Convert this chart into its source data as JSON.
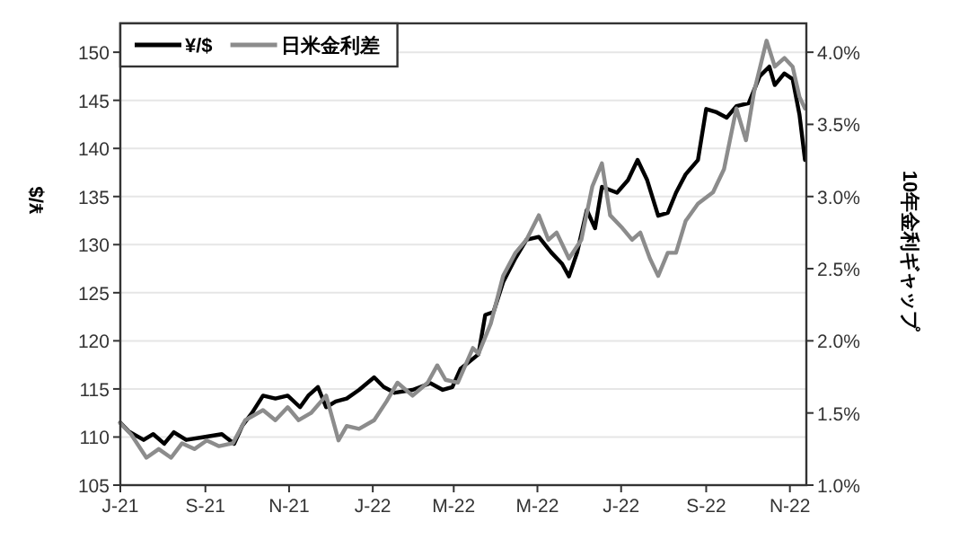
{
  "chart_data": {
    "type": "line",
    "ylabel": "¥/$",
    "y2label": "10年金利ギャップ",
    "grid": "y",
    "legend": "top left",
    "xlim": [
      "2021-07-01",
      "2022-11-13"
    ],
    "xticks": [
      {
        "value": "2021-07-01",
        "label": "J-21"
      },
      {
        "value": "2021-09-01",
        "label": "S-21"
      },
      {
        "value": "2021-11-01",
        "label": "N-21"
      },
      {
        "value": "2022-01-01",
        "label": "J-22"
      },
      {
        "value": "2022-03-01",
        "label": "M-22"
      },
      {
        "value": "2022-05-01",
        "label": "M-22"
      },
      {
        "value": "2022-07-01",
        "label": "J-22"
      },
      {
        "value": "2022-09-01",
        "label": "S-22"
      },
      {
        "value": "2022-11-01",
        "label": "N-22"
      }
    ],
    "ylim": [
      105,
      153
    ],
    "yticks": [
      105,
      110,
      115,
      120,
      125,
      130,
      135,
      140,
      145,
      150
    ],
    "y2lim": [
      1.0,
      4.2
    ],
    "y2ticks": [
      {
        "value": 1.0,
        "label": "1.0%"
      },
      {
        "value": 1.5,
        "label": "1.5%"
      },
      {
        "value": 2.0,
        "label": "2.0%"
      },
      {
        "value": 2.5,
        "label": "2.5%"
      },
      {
        "value": 3.0,
        "label": "3.0%"
      },
      {
        "value": 3.5,
        "label": "3.5%"
      },
      {
        "value": 4.0,
        "label": "4.0%"
      }
    ],
    "series": [
      {
        "name": "¥/$",
        "color": "#000000",
        "x": [
          "2021-07-01",
          "2021-07-07",
          "2021-07-18",
          "2021-07-25",
          "2021-08-02",
          "2021-08-09",
          "2021-08-18",
          "2021-08-31",
          "2021-09-13",
          "2021-09-22",
          "2021-09-28",
          "2021-10-05",
          "2021-10-13",
          "2021-10-22",
          "2021-10-31",
          "2021-11-09",
          "2021-11-15",
          "2021-11-22",
          "2021-11-28",
          "2021-12-05",
          "2021-12-13",
          "2021-12-22",
          "2022-01-02",
          "2022-01-09",
          "2022-01-17",
          "2022-01-30",
          "2022-02-12",
          "2022-02-21",
          "2022-02-28",
          "2022-03-06",
          "2022-03-19",
          "2022-03-24",
          "2022-03-30",
          "2022-04-06",
          "2022-04-15",
          "2022-04-23",
          "2022-05-02",
          "2022-05-11",
          "2022-05-19",
          "2022-05-24",
          "2022-05-30",
          "2022-06-06",
          "2022-06-12",
          "2022-06-17",
          "2022-06-28",
          "2022-07-06",
          "2022-07-13",
          "2022-07-20",
          "2022-07-28",
          "2022-08-04",
          "2022-08-10",
          "2022-08-17",
          "2022-08-26",
          "2022-09-01",
          "2022-09-08",
          "2022-09-16",
          "2022-09-23",
          "2022-10-02",
          "2022-10-10",
          "2022-10-17",
          "2022-10-21",
          "2022-10-28",
          "2022-11-03",
          "2022-11-08",
          "2022-11-12"
        ],
        "values": [
          111.5,
          110.6,
          109.7,
          110.3,
          109.3,
          110.5,
          109.7,
          110.0,
          110.3,
          109.3,
          111.2,
          112.5,
          114.3,
          114.0,
          114.3,
          113.1,
          114.3,
          115.2,
          113.1,
          113.7,
          114.0,
          114.9,
          116.2,
          115.2,
          114.6,
          114.9,
          115.6,
          114.9,
          115.2,
          117.1,
          118.6,
          122.7,
          123.0,
          126.1,
          128.6,
          130.5,
          130.8,
          129.2,
          128.0,
          126.7,
          129.2,
          133.6,
          131.7,
          136.0,
          135.4,
          136.7,
          138.8,
          136.7,
          133.0,
          133.3,
          135.4,
          137.3,
          138.8,
          144.1,
          143.8,
          143.2,
          144.4,
          144.7,
          147.5,
          148.5,
          146.6,
          147.8,
          147.2,
          143.5,
          138.8
        ]
      },
      {
        "name": "日米金利差",
        "color": "#8c8c8c",
        "axis": "y2",
        "x": [
          "2021-07-01",
          "2021-07-09",
          "2021-07-20",
          "2021-07-29",
          "2021-08-07",
          "2021-08-15",
          "2021-08-24",
          "2021-09-02",
          "2021-09-11",
          "2021-09-21",
          "2021-09-30",
          "2021-10-13",
          "2021-10-22",
          "2021-10-31",
          "2021-11-08",
          "2021-11-17",
          "2021-11-28",
          "2021-12-07",
          "2021-12-13",
          "2021-12-22",
          "2022-01-02",
          "2022-01-11",
          "2022-01-19",
          "2022-01-30",
          "2022-02-10",
          "2022-02-17",
          "2022-02-23",
          "2022-03-04",
          "2022-03-15",
          "2022-03-19",
          "2022-03-28",
          "2022-04-06",
          "2022-04-15",
          "2022-04-23",
          "2022-05-02",
          "2022-05-09",
          "2022-05-15",
          "2022-05-24",
          "2022-06-02",
          "2022-06-10",
          "2022-06-17",
          "2022-06-23",
          "2022-07-02",
          "2022-07-09",
          "2022-07-15",
          "2022-07-22",
          "2022-07-28",
          "2022-08-04",
          "2022-08-10",
          "2022-08-17",
          "2022-08-26",
          "2022-09-06",
          "2022-09-14",
          "2022-09-23",
          "2022-09-30",
          "2022-10-06",
          "2022-10-15",
          "2022-10-21",
          "2022-10-28",
          "2022-11-03",
          "2022-11-08",
          "2022-11-12"
        ],
        "values": [
          1.43,
          1.35,
          1.19,
          1.25,
          1.19,
          1.29,
          1.25,
          1.31,
          1.27,
          1.29,
          1.45,
          1.52,
          1.45,
          1.54,
          1.45,
          1.5,
          1.62,
          1.31,
          1.41,
          1.39,
          1.45,
          1.58,
          1.71,
          1.62,
          1.71,
          1.83,
          1.73,
          1.71,
          1.95,
          1.91,
          2.12,
          2.45,
          2.61,
          2.7,
          2.87,
          2.7,
          2.75,
          2.57,
          2.7,
          3.07,
          3.23,
          2.87,
          2.78,
          2.7,
          2.75,
          2.57,
          2.45,
          2.61,
          2.61,
          2.83,
          2.95,
          3.03,
          3.19,
          3.61,
          3.39,
          3.73,
          4.08,
          3.9,
          3.96,
          3.9,
          3.69,
          3.61
        ]
      }
    ]
  }
}
